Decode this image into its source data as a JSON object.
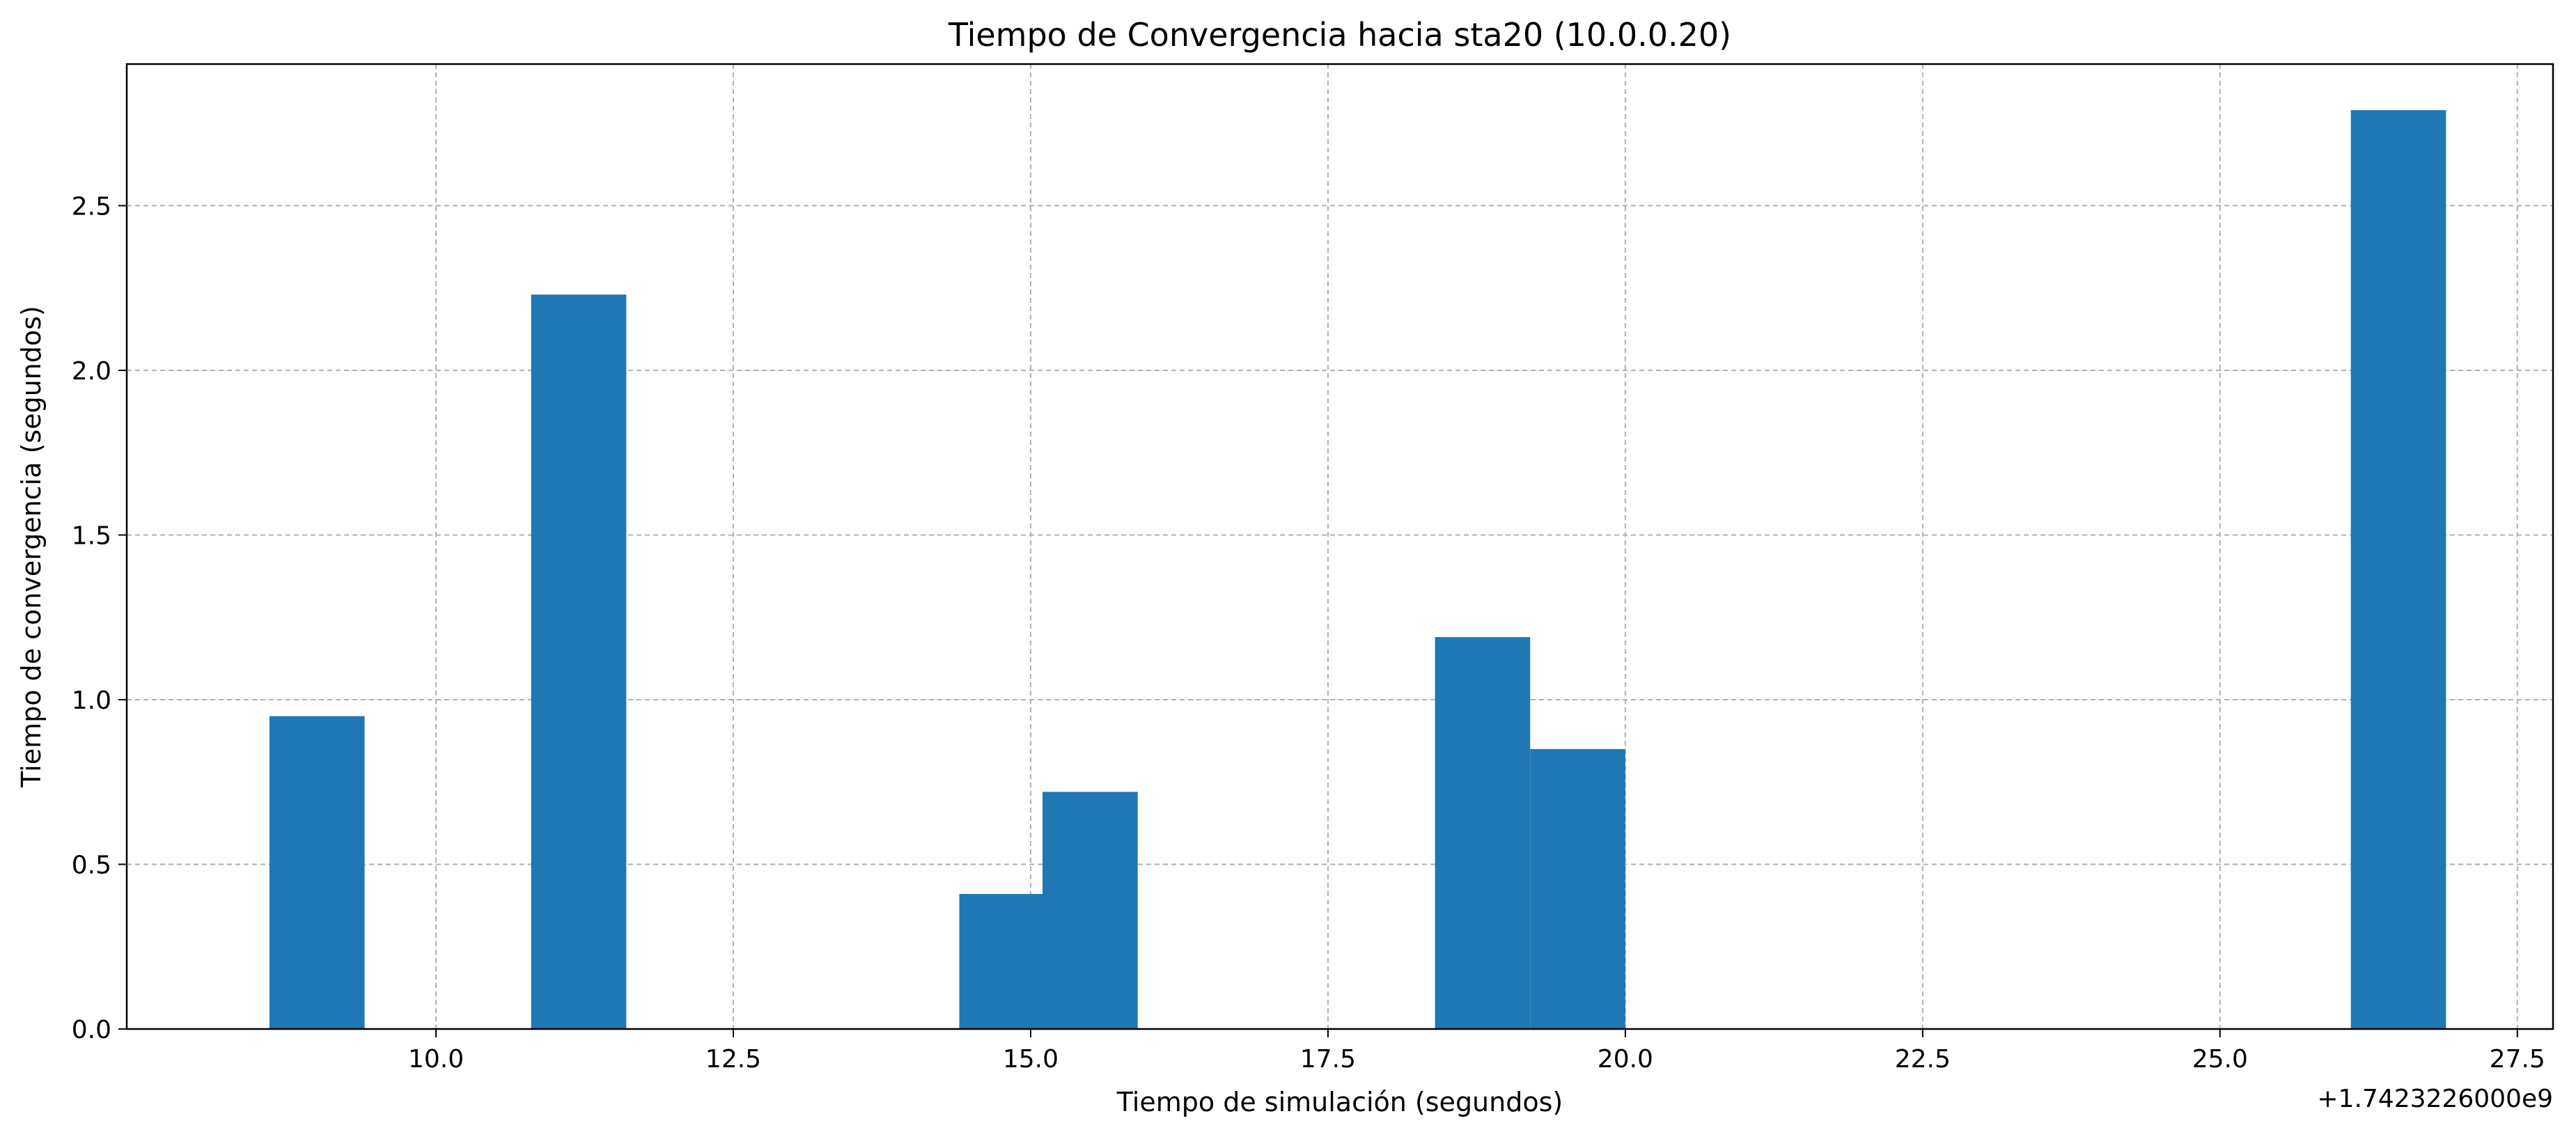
{
  "chart_data": {
    "type": "bar",
    "title": "Tiempo de Convergencia hacia sta20 (10.0.0.20)",
    "xlabel": "Tiempo de simulación (segundos)",
    "ylabel": "Tiempo de convergencia (segundos)",
    "x_offset_label": "+1.7423226000e9",
    "xlim": [
      7.4,
      27.8
    ],
    "ylim": [
      0,
      2.93
    ],
    "x_ticks": [
      10.0,
      12.5,
      15.0,
      17.5,
      20.0,
      22.5,
      25.0,
      27.5
    ],
    "x_tick_labels": [
      "10.0",
      "12.5",
      "15.0",
      "17.5",
      "20.0",
      "22.5",
      "25.0",
      "27.5"
    ],
    "y_ticks": [
      0.0,
      0.5,
      1.0,
      1.5,
      2.0,
      2.5
    ],
    "y_tick_labels": [
      "0.0",
      "0.5",
      "1.0",
      "1.5",
      "2.0",
      "2.5"
    ],
    "bar_width": 0.8,
    "grid": true,
    "bar_color": "#1f77b4",
    "x": [
      9.0,
      11.2,
      14.8,
      15.5,
      18.8,
      19.6,
      26.5
    ],
    "values": [
      0.95,
      2.23,
      0.41,
      0.72,
      1.19,
      0.85,
      2.79
    ]
  }
}
